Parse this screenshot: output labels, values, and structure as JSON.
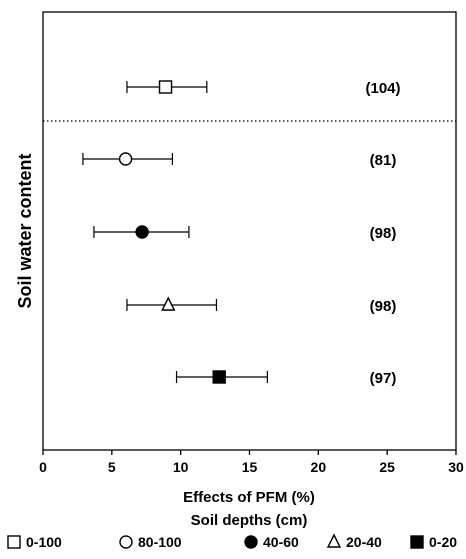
{
  "chart_data": {
    "type": "scatter",
    "xlabel": "Effects of PFM (%)",
    "ylabel": "Soil water content",
    "xlim": [
      0,
      30
    ],
    "xticks": [
      0,
      5,
      10,
      15,
      20,
      25,
      30
    ],
    "grid": false,
    "legend_title": "Soil depths (cm)",
    "legend_position": "bottom",
    "series": [
      {
        "name": "0-100",
        "marker": "open-square",
        "x": 8.9,
        "lower": 6.1,
        "upper": 11.9,
        "n_label": "(104)"
      },
      {
        "name": "80-100",
        "marker": "open-circle",
        "x": 6.0,
        "lower": 2.9,
        "upper": 9.4,
        "n_label": "(81)"
      },
      {
        "name": "40-60",
        "marker": "filled-circle",
        "x": 7.2,
        "lower": 3.7,
        "upper": 10.6,
        "n_label": "(98)"
      },
      {
        "name": "20-40",
        "marker": "open-triangle",
        "x": 9.1,
        "lower": 6.1,
        "upper": 12.6,
        "n_label": "(98)"
      },
      {
        "name": "0-20",
        "marker": "filled-square",
        "x": 12.8,
        "lower": 9.7,
        "upper": 16.3,
        "n_label": "(97)"
      }
    ],
    "reference_line": {
      "style": "dotted",
      "between": [
        "0-100",
        "80-100"
      ]
    }
  }
}
